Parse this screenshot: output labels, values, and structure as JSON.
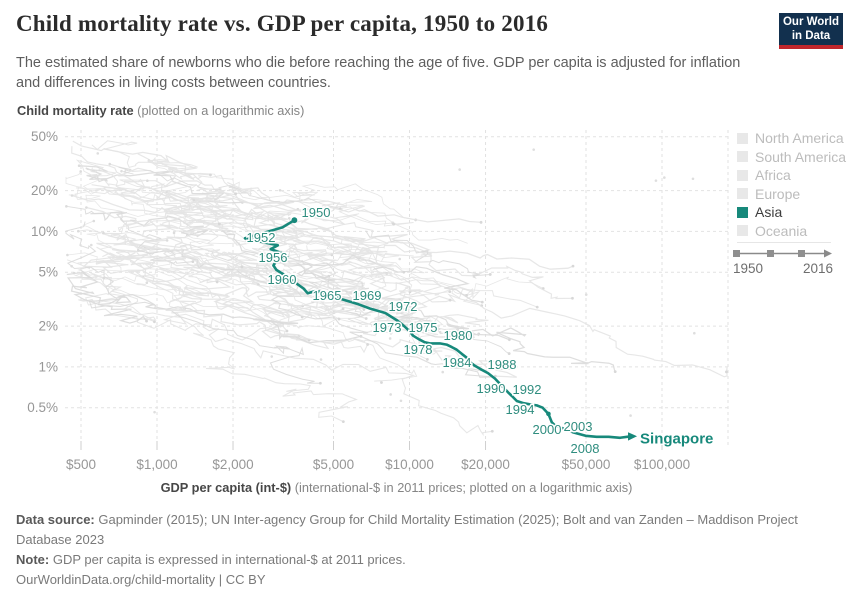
{
  "header": {
    "title": "Child mortality rate vs. GDP per capita, 1950 to 2016",
    "subtitle": "The estimated share of newborns who die before reaching the age of five. GDP per capita is adjusted for inflation and differences in living costs between countries.",
    "logo": {
      "line1": "Our World",
      "line2": "in Data",
      "navy": "#12304e",
      "red": "#c0262c"
    }
  },
  "axis_titles": {
    "y_bold": "Child mortality rate",
    "y_note": " (plotted on a logarithmic axis)",
    "x_bold": "GDP per capita (int-$)",
    "x_note": " (international-$ in 2011 prices; plotted on a logarithmic axis)"
  },
  "legend": {
    "items": [
      {
        "label": "North America",
        "active": false
      },
      {
        "label": "South America",
        "active": false
      },
      {
        "label": "Africa",
        "active": false
      },
      {
        "label": "Europe",
        "active": false
      },
      {
        "label": "Asia",
        "active": true
      },
      {
        "label": "Oceania",
        "active": false
      }
    ],
    "timeline": {
      "start": "1950",
      "end": "2016"
    }
  },
  "footer": {
    "source_bold": "Data source:",
    "source_text": " Gapminder (2015); UN Inter-agency Group for Child Mortality Estimation (2025); Bolt and van Zanden – Maddison Project Database 2023",
    "note_bold": "Note:",
    "note_text": " GDP per capita is expressed in international-$ at 2011 prices.",
    "license": "OurWorldinData.org/child-mortality | CC BY"
  },
  "chart_data": {
    "type": "line",
    "title": "Child mortality rate vs. GDP per capita, 1950 to 2016",
    "xlabel": "GDP per capita (int-$)",
    "ylabel": "Child mortality rate",
    "x_scale": "log",
    "y_scale": "log",
    "x_ticks": {
      "values": [
        500,
        1000,
        2000,
        5000,
        10000,
        20000,
        50000,
        100000
      ],
      "labels": [
        "$500",
        "$1,000",
        "$2,000",
        "$5,000",
        "$10,000",
        "$20,000",
        "$50,000",
        "$100,000"
      ]
    },
    "y_ticks": {
      "values": [
        50,
        20,
        10,
        5,
        2,
        1,
        0.5
      ],
      "labels": [
        "50%",
        "20%",
        "10%",
        "5%",
        "2%",
        "1%",
        "0.5%"
      ]
    },
    "xlim": [
      430,
      186000
    ],
    "ylim": [
      0.26,
      56
    ],
    "grid": "dashed",
    "series": [
      {
        "name": "Singapore",
        "region": "Asia",
        "color": "#17897b",
        "label_color": "#2f8d7f",
        "points_format": [
          "year",
          "gdp_per_capita_int_dollar",
          "child_mortality_pct"
        ],
        "points": [
          [
            1950,
            3500,
            12.1
          ],
          [
            1951,
            3140,
            10.7
          ],
          [
            1952,
            2230,
            8.9
          ],
          [
            1953,
            3010,
            7.9
          ],
          [
            1954,
            2820,
            7.4
          ],
          [
            1955,
            3190,
            6.8
          ],
          [
            1956,
            3250,
            6.6
          ],
          [
            1957,
            2940,
            5.9
          ],
          [
            1958,
            2890,
            5.6
          ],
          [
            1959,
            2970,
            5.2
          ],
          [
            1960,
            3180,
            4.8
          ],
          [
            1962,
            3460,
            4.3
          ],
          [
            1964,
            3800,
            3.8
          ],
          [
            1965,
            3950,
            3.5
          ],
          [
            1966,
            4280,
            3.65
          ],
          [
            1967,
            4850,
            3.4
          ],
          [
            1968,
            5420,
            3.15
          ],
          [
            1969,
            6280,
            2.9
          ],
          [
            1970,
            6960,
            2.7
          ],
          [
            1971,
            8020,
            2.5
          ],
          [
            1972,
            8940,
            2.2
          ],
          [
            1973,
            9520,
            2.0
          ],
          [
            1974,
            9960,
            1.85
          ],
          [
            1975,
            10330,
            1.7
          ],
          [
            1976,
            10900,
            1.6
          ],
          [
            1977,
            11500,
            1.52
          ],
          [
            1978,
            12040,
            1.49
          ],
          [
            1979,
            13180,
            1.49
          ],
          [
            1980,
            14030,
            1.46
          ],
          [
            1981,
            14700,
            1.4
          ],
          [
            1982,
            15380,
            1.34
          ],
          [
            1983,
            16100,
            1.25
          ],
          [
            1984,
            16850,
            1.17
          ],
          [
            1985,
            17300,
            1.09
          ],
          [
            1986,
            18000,
            1.03
          ],
          [
            1987,
            19180,
            0.96
          ],
          [
            1988,
            20450,
            0.9
          ],
          [
            1989,
            21800,
            0.82
          ],
          [
            1990,
            22800,
            0.75
          ],
          [
            1991,
            23650,
            0.7
          ],
          [
            1992,
            24540,
            0.65
          ],
          [
            1993,
            25450,
            0.61
          ],
          [
            1994,
            26600,
            0.56
          ],
          [
            1995,
            28300,
            0.54
          ],
          [
            1996,
            29900,
            0.53
          ],
          [
            1997,
            31900,
            0.52
          ],
          [
            1998,
            33700,
            0.5
          ],
          [
            1999,
            35500,
            0.45
          ],
          [
            2000,
            36600,
            0.39
          ],
          [
            2001,
            37700,
            0.37
          ],
          [
            2003,
            40800,
            0.35
          ],
          [
            2005,
            44300,
            0.33
          ],
          [
            2008,
            49800,
            0.31
          ],
          [
            2010,
            55000,
            0.305
          ],
          [
            2013,
            61500,
            0.305
          ],
          [
            2016,
            68200,
            0.3
          ]
        ],
        "labeled_years": [
          1950,
          1952,
          1956,
          1960,
          1965,
          1969,
          1972,
          1973,
          1975,
          1978,
          1980,
          1984,
          1988,
          1990,
          1992,
          1994,
          2000,
          2003,
          2008
        ]
      }
    ],
    "background_series": {
      "description": "all other countries, unhighlighted",
      "color": "#e4e4e4"
    },
    "legend_position": "right"
  }
}
